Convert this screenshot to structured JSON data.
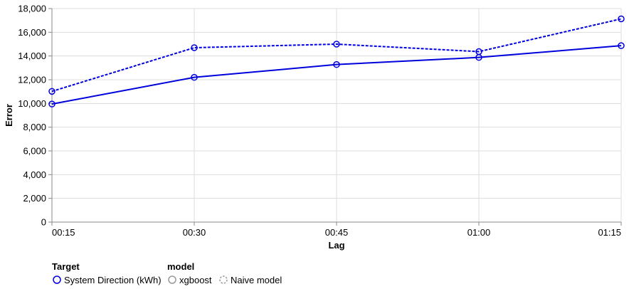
{
  "chart_data": {
    "type": "line",
    "xlabel": "Lag",
    "ylabel": "Error",
    "categories": [
      "00:15",
      "00:30",
      "00:45",
      "01:00",
      "01:15"
    ],
    "ylim": [
      0,
      18000
    ],
    "yticks": [
      0,
      2000,
      4000,
      6000,
      8000,
      10000,
      12000,
      14000,
      16000,
      18000
    ],
    "ytick_labels": [
      "0",
      "2,000",
      "4,000",
      "6,000",
      "8,000",
      "10,000",
      "12,000",
      "14,000",
      "16,000",
      "18,000"
    ],
    "grid": true,
    "series": [
      {
        "name": "xgboost",
        "target": "System Direction (kWh)",
        "color": "#0000dd",
        "dash": "solid",
        "values": [
          9950,
          12200,
          13280,
          13880,
          14870
        ]
      },
      {
        "name": "Naive model",
        "target": "System Direction (kWh)",
        "color": "#0000dd",
        "dash": "dashed",
        "values": [
          11020,
          14700,
          15000,
          14370,
          17130
        ]
      }
    ],
    "legend": {
      "position": "bottom-left",
      "target_title": "Target",
      "target_items": [
        {
          "label": "System Direction (kWh)",
          "color": "#0000dd"
        }
      ],
      "model_title": "model",
      "model_items": [
        {
          "label": "xgboost",
          "style": "solid"
        },
        {
          "label": "Naive model",
          "style": "dashed"
        }
      ]
    }
  }
}
